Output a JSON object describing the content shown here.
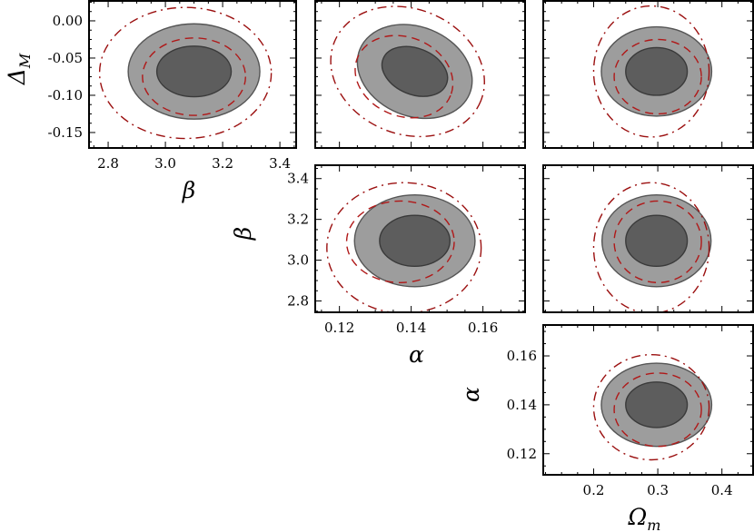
{
  "chart_data": [
    {
      "type": "contour",
      "id": "beta-deltaM",
      "xlabel": "β",
      "ylabel": "Δ",
      "ylabel_sub": "M",
      "xlim": [
        2.73,
        3.46
      ],
      "ylim": [
        -0.172,
        0.028
      ],
      "xticks": [
        2.8,
        3.0,
        3.2,
        3.4
      ],
      "xtick_labels": [
        "2.8",
        "3.0",
        "3.2",
        "3.4"
      ],
      "yticks": [
        0.0,
        -0.05,
        -0.1,
        -0.15
      ],
      "ytick_labels": [
        "0.00",
        "-0.05",
        "-0.10",
        "-0.15"
      ],
      "show_xticklabels": true,
      "show_yticklabels": true,
      "series": [
        {
          "kind": "outer-contour",
          "cx": 3.1,
          "cy": -0.068,
          "rx": 0.23,
          "ry": 0.064,
          "angle": 0
        },
        {
          "kind": "inner-contour",
          "cx": 3.1,
          "cy": -0.068,
          "rx": 0.13,
          "ry": 0.034,
          "angle": 0
        },
        {
          "kind": "dashed-contour",
          "cx": 3.1,
          "cy": -0.075,
          "rx": 0.18,
          "ry": 0.052,
          "angle": 0
        },
        {
          "kind": "dashdot-contour",
          "cx": 3.07,
          "cy": -0.07,
          "rx": 0.3,
          "ry": 0.088,
          "angle": 0
        }
      ]
    },
    {
      "type": "contour",
      "id": "alpha-deltaM",
      "xlim": [
        0.113,
        0.172
      ],
      "ylim": [
        -0.172,
        0.028
      ],
      "xticks": [
        0.12,
        0.14,
        0.16
      ],
      "yticks": [
        0.0,
        -0.05,
        -0.1,
        -0.15
      ],
      "show_xticklabels": false,
      "show_yticklabels": false,
      "series": [
        {
          "kind": "outer-contour",
          "cx": 0.141,
          "cy": -0.068,
          "rx": 0.0165,
          "ry": 0.06,
          "angle": 22
        },
        {
          "kind": "inner-contour",
          "cx": 0.141,
          "cy": -0.068,
          "rx": 0.0095,
          "ry": 0.031,
          "angle": 22
        },
        {
          "kind": "dashed-contour",
          "cx": 0.138,
          "cy": -0.075,
          "rx": 0.014,
          "ry": 0.053,
          "angle": 22
        },
        {
          "kind": "dashdot-contour",
          "cx": 0.139,
          "cy": -0.068,
          "rx": 0.022,
          "ry": 0.084,
          "angle": 22
        }
      ]
    },
    {
      "type": "contour",
      "id": "omegam-deltaM",
      "xlim": [
        0.12,
        0.45
      ],
      "ylim": [
        -0.172,
        0.028
      ],
      "xticks": [
        0.2,
        0.3,
        0.4
      ],
      "yticks": [
        0.0,
        -0.05,
        -0.1,
        -0.15
      ],
      "show_xticklabels": false,
      "show_yticklabels": false,
      "series": [
        {
          "kind": "outer-contour",
          "cx": 0.298,
          "cy": -0.068,
          "rx": 0.086,
          "ry": 0.06,
          "angle": 0
        },
        {
          "kind": "inner-contour",
          "cx": 0.298,
          "cy": -0.068,
          "rx": 0.048,
          "ry": 0.032,
          "angle": 0
        },
        {
          "kind": "dashed-contour",
          "cx": 0.3,
          "cy": -0.075,
          "rx": 0.068,
          "ry": 0.05,
          "angle": 0
        },
        {
          "kind": "dashdot-contour",
          "cx": 0.29,
          "cy": -0.068,
          "rx": 0.09,
          "ry": 0.088,
          "angle": 0
        }
      ]
    },
    {
      "type": "contour",
      "id": "alpha-beta",
      "xlabel": "α",
      "ylabel": "β",
      "xlim": [
        0.113,
        0.172
      ],
      "ylim": [
        2.74,
        3.47
      ],
      "xticks": [
        0.12,
        0.14,
        0.16
      ],
      "xtick_labels": [
        "0.12",
        "0.14",
        "0.16"
      ],
      "yticks": [
        2.8,
        3.0,
        3.2,
        3.4
      ],
      "ytick_labels": [
        "2.8",
        "3.0",
        "3.2",
        "3.4"
      ],
      "show_xticklabels": true,
      "show_yticklabels": true,
      "series": [
        {
          "kind": "outer-contour",
          "cx": 0.141,
          "cy": 3.095,
          "rx": 0.0168,
          "ry": 0.225,
          "angle": 0
        },
        {
          "kind": "inner-contour",
          "cx": 0.141,
          "cy": 3.095,
          "rx": 0.0098,
          "ry": 0.125,
          "angle": 0
        },
        {
          "kind": "dashed-contour",
          "cx": 0.137,
          "cy": 3.09,
          "rx": 0.015,
          "ry": 0.2,
          "angle": 0
        },
        {
          "kind": "dashdot-contour",
          "cx": 0.138,
          "cy": 3.06,
          "rx": 0.0215,
          "ry": 0.32,
          "angle": 0
        }
      ]
    },
    {
      "type": "contour",
      "id": "omegam-beta",
      "xlim": [
        0.12,
        0.45
      ],
      "ylim": [
        2.74,
        3.47
      ],
      "xticks": [
        0.2,
        0.3,
        0.4
      ],
      "yticks": [
        2.8,
        3.0,
        3.2,
        3.4
      ],
      "show_xticklabels": false,
      "show_yticklabels": false,
      "series": [
        {
          "kind": "outer-contour",
          "cx": 0.298,
          "cy": 3.095,
          "rx": 0.085,
          "ry": 0.225,
          "angle": 0
        },
        {
          "kind": "inner-contour",
          "cx": 0.298,
          "cy": 3.095,
          "rx": 0.048,
          "ry": 0.125,
          "angle": 0
        },
        {
          "kind": "dashed-contour",
          "cx": 0.3,
          "cy": 3.09,
          "rx": 0.068,
          "ry": 0.2,
          "angle": 0
        },
        {
          "kind": "dashdot-contour",
          "cx": 0.29,
          "cy": 3.06,
          "rx": 0.09,
          "ry": 0.32,
          "angle": 0
        }
      ]
    },
    {
      "type": "contour",
      "id": "omegam-alpha",
      "xlabel": "Ω",
      "xlabel_sub": "m",
      "ylabel": "α",
      "xlim": [
        0.12,
        0.45
      ],
      "ylim": [
        0.111,
        0.173
      ],
      "xticks": [
        0.2,
        0.3,
        0.4
      ],
      "xtick_labels": [
        "0.2",
        "0.3",
        "0.4"
      ],
      "yticks": [
        0.12,
        0.14,
        0.16
      ],
      "ytick_labels": [
        "0.12",
        "0.14",
        "0.16"
      ],
      "show_xticklabels": true,
      "show_yticklabels": true,
      "series": [
        {
          "kind": "outer-contour",
          "cx": 0.298,
          "cy": 0.14,
          "rx": 0.086,
          "ry": 0.017,
          "angle": 0
        },
        {
          "kind": "inner-contour",
          "cx": 0.298,
          "cy": 0.14,
          "rx": 0.048,
          "ry": 0.0093,
          "angle": 0
        },
        {
          "kind": "dashed-contour",
          "cx": 0.3,
          "cy": 0.138,
          "rx": 0.068,
          "ry": 0.015,
          "angle": 0
        },
        {
          "kind": "dashdot-contour",
          "cx": 0.29,
          "cy": 0.139,
          "rx": 0.09,
          "ry": 0.0215,
          "angle": 0
        }
      ]
    }
  ],
  "colors": {
    "outer_fill": "#9d9d9d",
    "inner_fill": "#5d5d5d",
    "contour_stroke": "#555555",
    "dashed": "#b01818",
    "dashdot": "#9b1010",
    "axes": "#000000"
  }
}
